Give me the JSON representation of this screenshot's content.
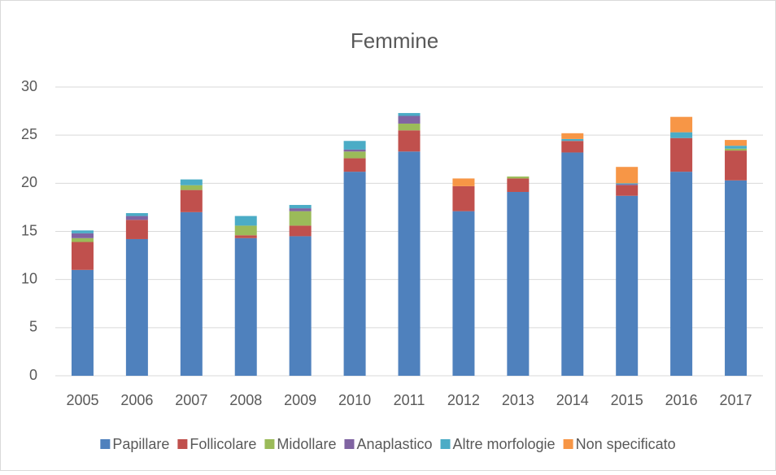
{
  "chart_data": {
    "type": "stacked_bar",
    "title": "Femmine",
    "categories": [
      "2005",
      "2006",
      "2007",
      "2008",
      "2009",
      "2010",
      "2011",
      "2012",
      "2013",
      "2014",
      "2015",
      "2016",
      "2017"
    ],
    "series": [
      {
        "name": "Papillare",
        "color": "#4f81bd",
        "values": [
          11,
          14.2,
          17,
          14.3,
          14.5,
          21.2,
          23.3,
          17.1,
          19.1,
          23.2,
          18.7,
          21.2,
          20.3
        ]
      },
      {
        "name": "Follicolare",
        "color": "#c0504d",
        "values": [
          2.9,
          2.0,
          2.3,
          0.3,
          1.1,
          1.4,
          2.2,
          2.6,
          1.4,
          1.2,
          1.1,
          3.5,
          3.1
        ]
      },
      {
        "name": "Midollare",
        "color": "#9bbb59",
        "values": [
          0.4,
          0,
          0.5,
          1.0,
          1.5,
          0.7,
          0.7,
          0,
          0.2,
          0,
          0,
          0,
          0.2
        ]
      },
      {
        "name": "Anaplastico",
        "color": "#8064a2",
        "values": [
          0.5,
          0.4,
          0,
          0,
          0.3,
          0.2,
          0.8,
          0,
          0,
          0,
          0.1,
          0,
          0
        ]
      },
      {
        "name": "Altre morfologie",
        "color": "#4bacc6",
        "values": [
          0.3,
          0.3,
          0.6,
          1.0,
          0.35,
          0.9,
          0.3,
          0,
          0,
          0.2,
          0.1,
          0.6,
          0.3
        ]
      },
      {
        "name": "Non specificato",
        "color": "#f79646",
        "values": [
          0,
          0,
          0,
          0,
          0,
          0,
          0,
          0.8,
          0,
          0.6,
          1.7,
          1.6,
          0.6
        ]
      }
    ],
    "ylim": [
      0,
      30
    ],
    "yticks": [
      0,
      5,
      10,
      15,
      20,
      25,
      30
    ],
    "grid": true,
    "legend": "bottom"
  }
}
